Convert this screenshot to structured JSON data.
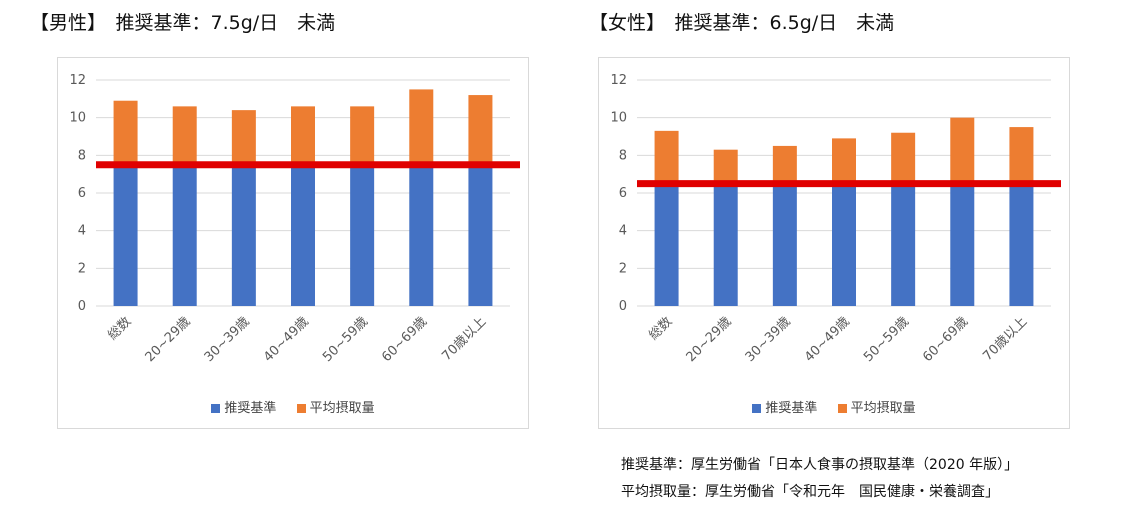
{
  "colors": {
    "standard": "#4472C4",
    "average": "#ED7D31",
    "line": "#E00000",
    "grid": "#D9D9D9",
    "tick": "#595959"
  },
  "charts": [
    {
      "heading": "【男性】　推奨基準：7.5g/日　未満",
      "legend": {
        "standard": "推奨基準",
        "average": "平均摂取量"
      }
    },
    {
      "heading": "【女性】　推奨基準：6.5g/日　未満",
      "legend": {
        "standard": "推奨基準",
        "average": "平均摂取量"
      }
    }
  ],
  "chart_data": [
    {
      "type": "bar",
      "title": "【男性】　推奨基準：7.5g/日　未満",
      "categories": [
        "総数",
        "20~29歳",
        "30~39歳",
        "40~49歳",
        "50~59歳",
        "60~69歳",
        "70歳以上"
      ],
      "series": [
        {
          "name": "推奨基準",
          "values": [
            7.5,
            7.5,
            7.5,
            7.5,
            7.5,
            7.5,
            7.5
          ]
        },
        {
          "name": "平均摂取量",
          "values": [
            10.9,
            10.6,
            10.4,
            10.6,
            10.6,
            11.5,
            11.2
          ]
        }
      ],
      "reference_line": 7.5,
      "yticks": [
        0,
        2,
        4,
        6,
        8,
        10,
        12
      ],
      "ylim": [
        0,
        12
      ],
      "legend": "bottom"
    },
    {
      "type": "bar",
      "title": "【女性】　推奨基準：6.5g/日　未満",
      "categories": [
        "総数",
        "20~29歳",
        "30~39歳",
        "40~49歳",
        "50~59歳",
        "60~69歳",
        "70歳以上"
      ],
      "series": [
        {
          "name": "推奨基準",
          "values": [
            6.5,
            6.5,
            6.5,
            6.5,
            6.5,
            6.5,
            6.5
          ]
        },
        {
          "name": "平均摂取量",
          "values": [
            9.3,
            8.3,
            8.5,
            8.9,
            9.2,
            10.0,
            9.5
          ]
        }
      ],
      "reference_line": 6.5,
      "yticks": [
        0,
        2,
        4,
        6,
        8,
        10,
        12
      ],
      "ylim": [
        0,
        12
      ],
      "legend": "bottom"
    }
  ],
  "sources": {
    "line1": "推奨基準：厚生労働省「日本人食事の摂取基準（2020 年版）」",
    "line2": "平均摂取量：厚生労働省「令和元年　国民健康・栄養調査」"
  }
}
